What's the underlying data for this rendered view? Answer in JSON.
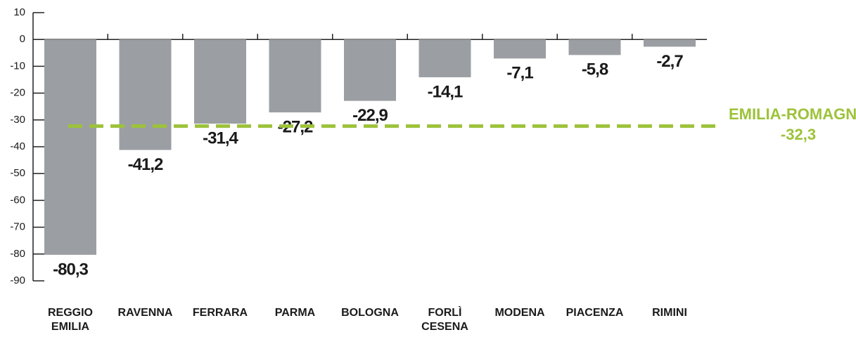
{
  "chart_data": {
    "type": "bar",
    "categories": [
      "REGGIO EMILIA",
      "RAVENNA",
      "FERRARA",
      "PARMA",
      "BOLOGNA",
      "FORLÌ CESENA",
      "MODENA",
      "PIACENZA",
      "RIMINI"
    ],
    "values": [
      -80.3,
      -41.2,
      -31.4,
      -27.2,
      -22.9,
      -14.1,
      -7.1,
      -5.8,
      -2.7
    ],
    "value_labels": [
      "-80,3",
      "-41,2",
      "-31,4",
      "-27,2",
      "-22,9",
      "-14,1",
      "-7,1",
      "-5,8",
      "-2,7"
    ],
    "color": "#9b9fa3",
    "ylim": [
      -90,
      10
    ],
    "yticks": [
      -90,
      -80,
      -70,
      -60,
      -50,
      -40,
      -30,
      -20,
      -10,
      0,
      10
    ],
    "reference": {
      "name": "EMILIA-ROMAGNA",
      "value": -32.3,
      "label": "-32,3",
      "color": "#9dc23a"
    }
  }
}
